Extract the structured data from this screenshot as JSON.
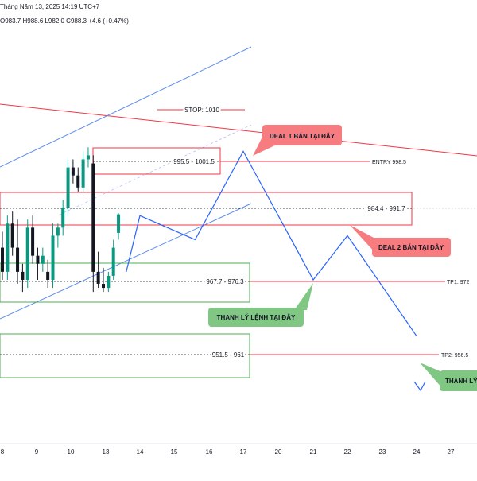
{
  "header": {
    "title_text": "Tháng Năm 13, 2025 14:19 UTC+7",
    "ohlc_text": "O983.7  H988.6  L982.0  C988.3  +4.6 (+0.47%)"
  },
  "labels": {
    "stop": "STOP: 1010",
    "zone_sell": "995.5 - 1001.5",
    "entry": "ENTRY 998.5",
    "zone_mid": "984.4 - 991.7",
    "zone_buy1": "967.7 - 976.3",
    "tp1": "TP1: 972",
    "zone_buy2": "951.5 - 961",
    "tp2": "TP2: 956.5"
  },
  "callouts": {
    "deal1": "DEAL 1 BÁN TẠI ĐÂY",
    "deal2": "DEAL 2 BÁN TẠI ĐÂY",
    "thanhly1": "THANH LÝ LỆNH TẠI ĐÂY",
    "thanhly2": "THANH LÝ"
  },
  "x_axis": {
    "ticks": [
      "8",
      "9",
      "10",
      "13",
      "14",
      "15",
      "16",
      "17",
      "20",
      "21",
      "22",
      "23",
      "24",
      "27"
    ]
  },
  "colors": {
    "up": "#089981",
    "down": "#131722",
    "red_line": "#f23645",
    "blue_line": "#2962ff",
    "green_zone": "#4caf50",
    "red_callout": "#f77c80",
    "green_callout": "#81c784"
  },
  "chart_data": {
    "type": "candlestick",
    "candles": [
      {
        "o": 980,
        "h": 984,
        "l": 972,
        "c": 974
      },
      {
        "o": 974,
        "h": 988,
        "l": 972,
        "c": 986
      },
      {
        "o": 986,
        "h": 989,
        "l": 978,
        "c": 980
      },
      {
        "o": 980,
        "h": 987,
        "l": 971,
        "c": 974
      },
      {
        "o": 974,
        "h": 976,
        "l": 969,
        "c": 972
      },
      {
        "o": 972,
        "h": 987,
        "l": 970,
        "c": 985
      },
      {
        "o": 985,
        "h": 988,
        "l": 976,
        "c": 978
      },
      {
        "o": 978,
        "h": 980,
        "l": 972,
        "c": 976
      },
      {
        "o": 976,
        "h": 980,
        "l": 974,
        "c": 978
      },
      {
        "o": 974,
        "h": 977,
        "l": 970,
        "c": 972
      },
      {
        "o": 972,
        "h": 986,
        "l": 970,
        "c": 983
      },
      {
        "o": 983,
        "h": 986,
        "l": 980,
        "c": 985
      },
      {
        "o": 985,
        "h": 992,
        "l": 983,
        "c": 990
      },
      {
        "o": 990,
        "h": 1002,
        "l": 988,
        "c": 1000
      },
      {
        "o": 1000,
        "h": 1002,
        "l": 996,
        "c": 998
      },
      {
        "o": 998,
        "h": 1000,
        "l": 994,
        "c": 995
      },
      {
        "o": 995,
        "h": 1004,
        "l": 994,
        "c": 1002
      },
      {
        "o": 1002,
        "h": 1005,
        "l": 1000,
        "c": 1003
      },
      {
        "o": 1001,
        "h": 1003,
        "l": 969,
        "c": 974
      },
      {
        "o": 974,
        "h": 979,
        "l": 970,
        "c": 971
      },
      {
        "o": 971,
        "h": 975,
        "l": 969,
        "c": 970
      },
      {
        "o": 970,
        "h": 974,
        "l": 969,
        "c": 973
      },
      {
        "o": 973,
        "h": 982,
        "l": 972,
        "c": 980
      },
      {
        "o": 983.7,
        "h": 988.6,
        "l": 982,
        "c": 988.3
      }
    ],
    "projection": [
      {
        "x": "13.6",
        "y": 974
      },
      {
        "x": "14",
        "y": 988
      },
      {
        "x": "15.6",
        "y": 982
      },
      {
        "x": "17",
        "y": 1004
      },
      {
        "x": "21",
        "y": 972
      },
      {
        "x": "22",
        "y": 983
      },
      {
        "x": "24",
        "y": 958
      }
    ]
  }
}
